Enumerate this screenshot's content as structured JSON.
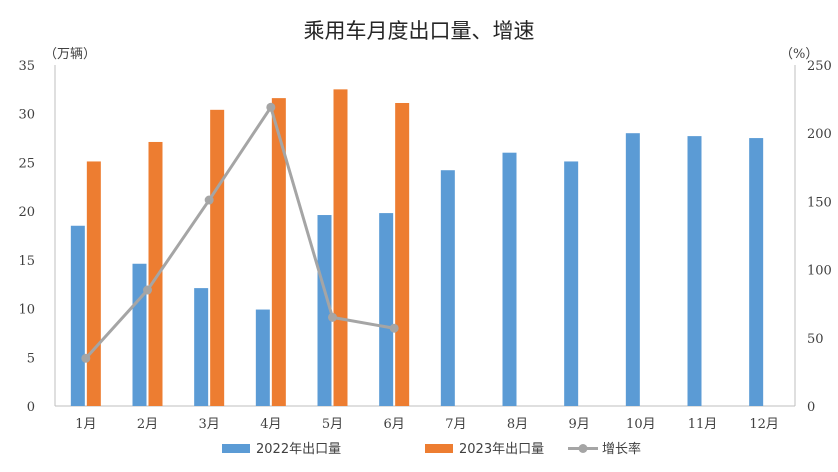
{
  "chart_data": {
    "type": "bar",
    "title": "乘用车月度出口量、增速",
    "y_left_unit": "（万辆）",
    "y_right_unit": "（%）",
    "categories": [
      "1月",
      "2月",
      "3月",
      "4月",
      "5月",
      "6月",
      "7月",
      "8月",
      "9月",
      "10月",
      "11月",
      "12月"
    ],
    "ylim_left": [
      0,
      35
    ],
    "ylim_right": [
      0,
      250
    ],
    "yticks_left": [
      0,
      5,
      10,
      15,
      20,
      25,
      30,
      35
    ],
    "yticks_right": [
      0,
      50,
      100,
      150,
      200,
      250
    ],
    "grid": false,
    "legend_position": "bottom",
    "series": [
      {
        "name": "2022年出口量",
        "type": "bar",
        "axis": "left",
        "color": "#5b9bd5",
        "values": [
          18.5,
          14.6,
          12.1,
          9.9,
          19.6,
          19.8,
          24.2,
          26.0,
          25.1,
          28.0,
          27.7,
          27.5
        ]
      },
      {
        "name": "2023年出口量",
        "type": "bar",
        "axis": "left",
        "color": "#ed7d31",
        "values": [
          25.1,
          27.1,
          30.4,
          31.6,
          32.5,
          31.1,
          null,
          null,
          null,
          null,
          null,
          null
        ]
      },
      {
        "name": "增长率",
        "type": "line",
        "axis": "right",
        "color": "#a5a5a5",
        "values": [
          35,
          85,
          151,
          219,
          65,
          57,
          null,
          null,
          null,
          null,
          null,
          null
        ]
      }
    ]
  }
}
